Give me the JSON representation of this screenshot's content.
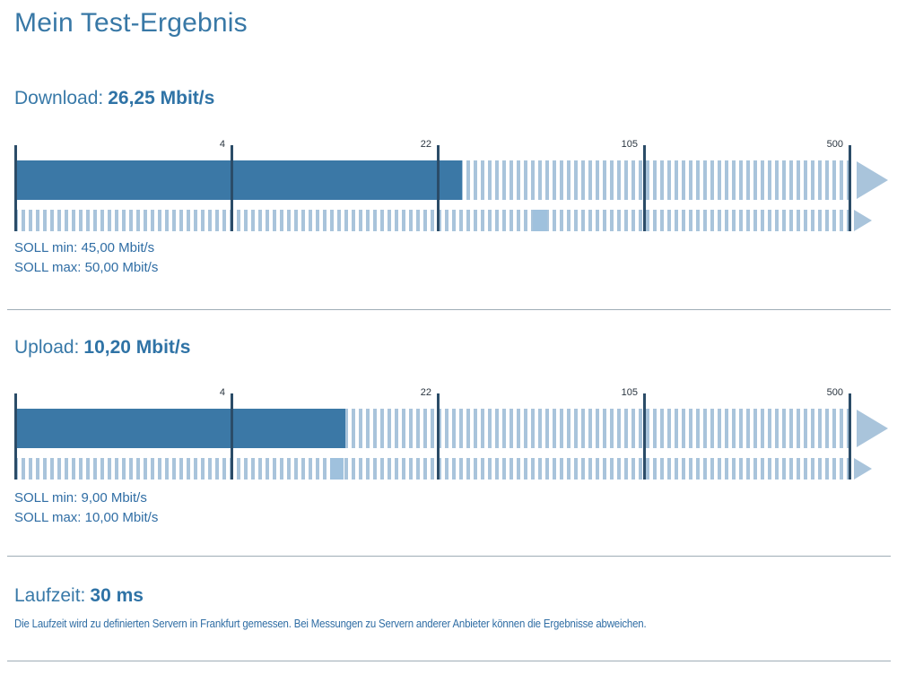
{
  "page_title": "Mein Test-Ergebnis",
  "charts": {
    "download": {
      "label": "Download:",
      "value_text": "26,25 Mbit/s",
      "value": 26.25,
      "unit": "Mbit/s",
      "soll_min": 45.0,
      "soll_max": 50.0,
      "soll_min_text": "SOLL min: 45,00 Mbit/s",
      "soll_max_text": "SOLL max: 50,00 Mbit/s",
      "ticks": [
        4,
        22,
        105,
        500
      ]
    },
    "upload": {
      "label": "Upload:",
      "value_text": "10,20 Mbit/s",
      "value": 10.2,
      "unit": "Mbit/s",
      "soll_min": 9.0,
      "soll_max": 10.0,
      "soll_min_text": "SOLL min: 9,00 Mbit/s",
      "soll_max_text": "SOLL max: 10,00 Mbit/s",
      "ticks": [
        4,
        22,
        105,
        500
      ]
    }
  },
  "latency": {
    "label": "Laufzeit:",
    "value_text": "30 ms",
    "value": 30,
    "unit": "ms",
    "note": "Die Laufzeit wird zu definierten Servern in Frankfurt gemessen. Bei Messungen zu Servern anderer Anbieter können die Ergebnisse abweichen."
  },
  "chart_data": [
    {
      "type": "bar",
      "title": "Download",
      "orientation": "horizontal",
      "scale": "log",
      "tick_values": [
        4,
        22,
        105,
        500
      ],
      "measured_value": 26.25,
      "target_min": 45.0,
      "target_max": 50.0,
      "unit": "Mbit/s"
    },
    {
      "type": "bar",
      "title": "Upload",
      "orientation": "horizontal",
      "scale": "log",
      "tick_values": [
        4,
        22,
        105,
        500
      ],
      "measured_value": 10.2,
      "target_min": 9.0,
      "target_max": 10.0,
      "unit": "Mbit/s"
    }
  ],
  "colors": {
    "accent_text": "#3878a6",
    "bar": "#3b78a6",
    "stripe": "#a9c4db",
    "soll_marker": "#9fc1dd",
    "tick_line": "#2b4c68",
    "divider": "#9fadb6"
  }
}
